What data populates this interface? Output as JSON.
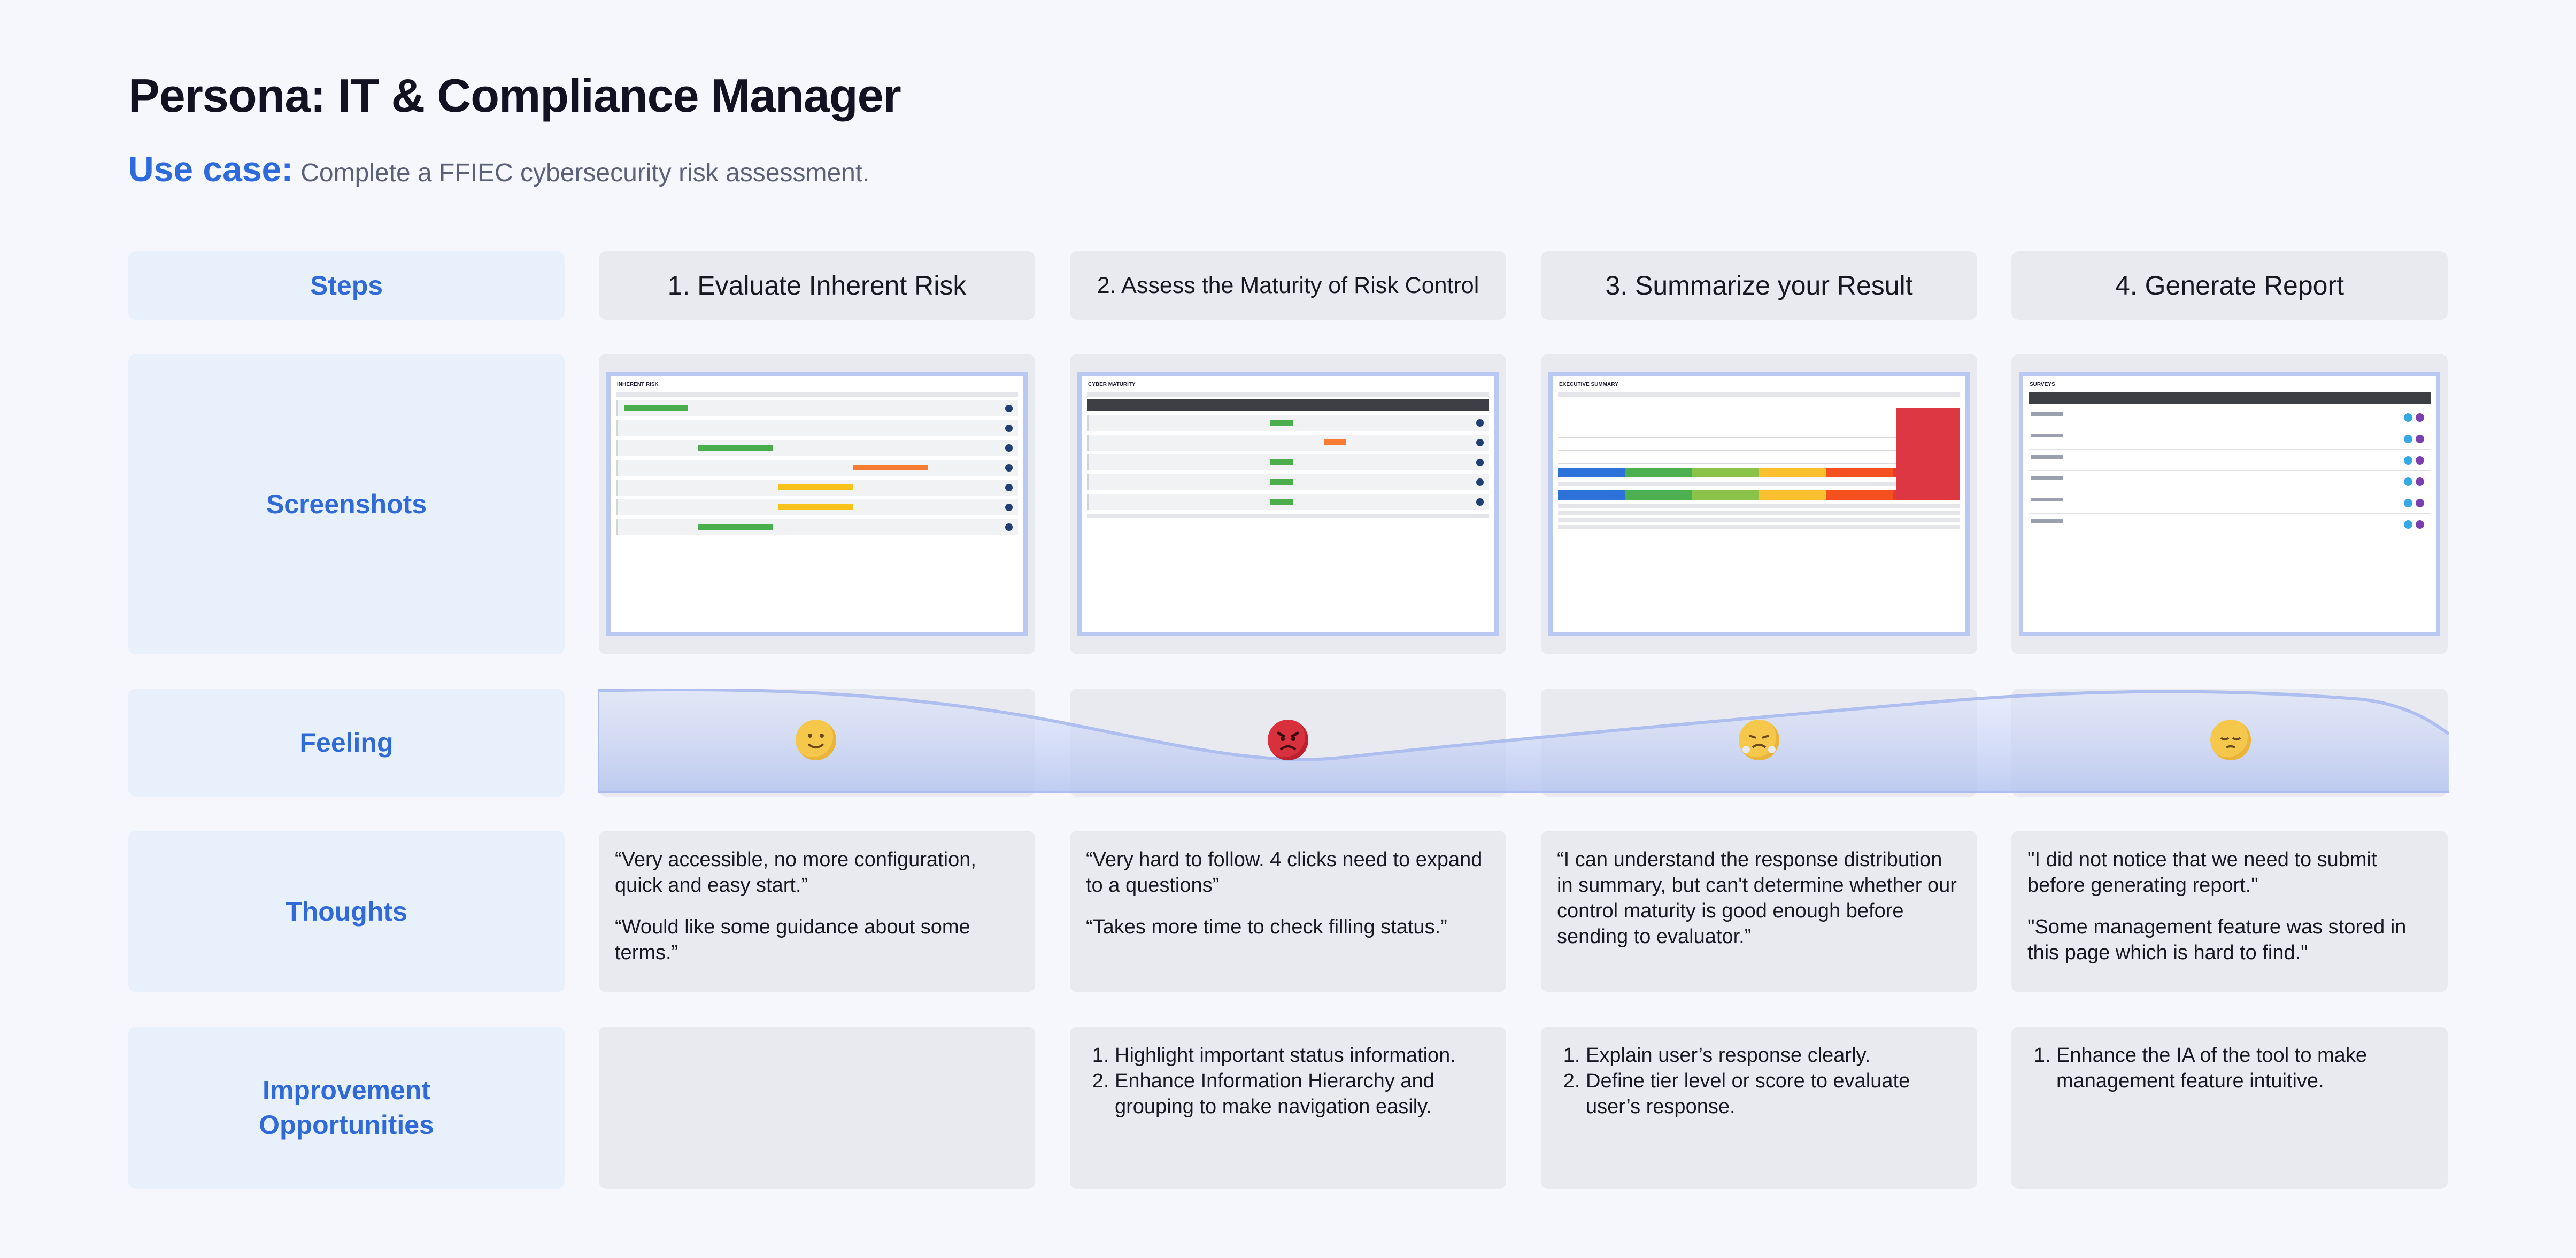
{
  "title": "Persona: IT & Compliance Manager",
  "use_case": {
    "label": "Use case:",
    "text": "Complete a FFIEC cybersecurity risk assessment."
  },
  "rows": {
    "steps": "Steps",
    "screenshots": "Screenshots",
    "feeling": "Feeling",
    "thoughts": "Thoughts",
    "improvement": "Improvement Opportunities"
  },
  "steps": [
    {
      "title": "1. Evaluate Inherent Risk",
      "feeling_icon": "slightly-smiling-face-icon",
      "thoughts": [
        "“Very accessible, no more configuration, quick and easy start.”",
        "“Would like some guidance about some terms.”"
      ],
      "improvements": []
    },
    {
      "title": "2. Assess the Maturity of Risk Control",
      "feeling_icon": "angry-face-icon",
      "thoughts": [
        "“Very hard to follow. 4 clicks need to expand to a questions”",
        "“Takes more time to check filling status.”"
      ],
      "improvements": [
        "Highlight important status information.",
        "Enhance Information Hierarchy and grouping to make navigation easily."
      ]
    },
    {
      "title": "3. Summarize your Result",
      "feeling_icon": "steaming-face-icon",
      "thoughts": [
        "“I can understand the response distribution in summary, but can't determine whether our control maturity is good enough before sending to evaluator.”"
      ],
      "improvements": [
        "Explain user’s response clearly.",
        "Define tier level or score to evaluate user’s response."
      ]
    },
    {
      "title": "4. Generate Report",
      "feeling_icon": "pensive-face-icon",
      "thoughts": [
        "\"I did not notice that we need to submit before generating report.\"",
        "\"Some management feature was stored in this page which is hard  to find.\""
      ],
      "improvements": [
        "Enhance the IA of the tool to make management feature intuitive."
      ]
    }
  ],
  "screenshot_headers": [
    "INHERENT RISK",
    "CYBER MATURITY",
    "EXECUTIVE SUMMARY",
    "SURVEYS"
  ],
  "feeling_levels": [
    0.55,
    0.05,
    0.35,
    0.55
  ],
  "colors": {
    "accent": "#2f6ad8",
    "curve": "#aebfef",
    "label_bg": "#e8f0fc",
    "card_bg": "#e9eaf0"
  }
}
